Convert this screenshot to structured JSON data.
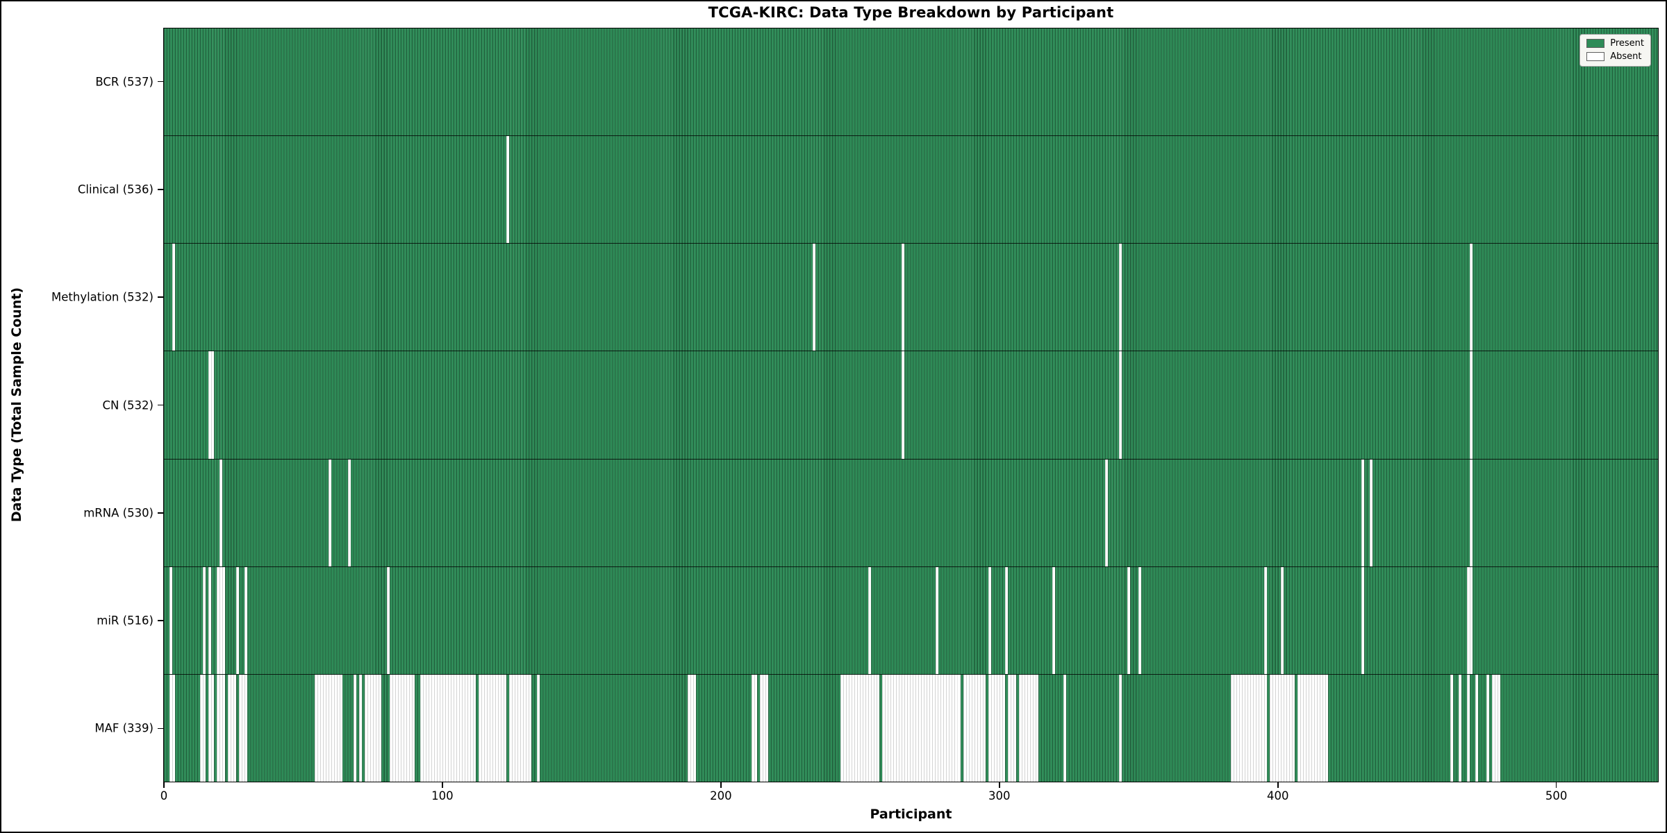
{
  "title": "TCGA-KIRC: Data Type Breakdown by Participant",
  "x_axis": {
    "label": "Participant",
    "ticks": [
      0,
      100,
      200,
      300,
      400,
      500
    ]
  },
  "y_axis": {
    "label": "Data Type (Total Sample Count)"
  },
  "legend": {
    "items": [
      {
        "label": "Present",
        "color": "#2e8b57"
      },
      {
        "label": "Absent",
        "color": "#ffffff"
      }
    ]
  },
  "colors": {
    "present": "#2e8b57",
    "absent": "#ffffff",
    "bar_edge": "#1c5737",
    "row_divider": "#1a1a1a",
    "legend_bg": "#f6f6f2"
  },
  "chart_data": {
    "type": "heatmap",
    "title": "TCGA-KIRC: Data Type Breakdown by Participant",
    "xlabel": "Participant",
    "ylabel": "Data Type (Total Sample Count)",
    "n_participants": 537,
    "x_range": [
      0,
      537
    ],
    "grid": false,
    "legend_position": "upper right",
    "encoding": "each row is a data type; green cell = sample present for that participant, white cell = absent; absent_ranges are inclusive participant-index ranges",
    "rows": [
      {
        "label": "BCR (537)",
        "name": "BCR",
        "present_count": 537,
        "absent_ranges": []
      },
      {
        "label": "Clinical (536)",
        "name": "Clinical",
        "present_count": 536,
        "absent_ranges": [
          [
            123,
            123
          ]
        ]
      },
      {
        "label": "Methylation (532)",
        "name": "Methylation",
        "present_count": 532,
        "absent_ranges": [
          [
            3,
            3
          ],
          [
            233,
            233
          ],
          [
            265,
            265
          ],
          [
            343,
            343
          ],
          [
            469,
            469
          ]
        ]
      },
      {
        "label": "CN (532)",
        "name": "CN",
        "present_count": 532,
        "absent_ranges": [
          [
            16,
            17
          ],
          [
            265,
            265
          ],
          [
            343,
            343
          ],
          [
            469,
            469
          ]
        ]
      },
      {
        "label": "mRNA (530)",
        "name": "mRNA",
        "present_count": 530,
        "absent_ranges": [
          [
            20,
            20
          ],
          [
            59,
            59
          ],
          [
            66,
            66
          ],
          [
            338,
            338
          ],
          [
            430,
            430
          ],
          [
            433,
            433
          ],
          [
            469,
            469
          ]
        ]
      },
      {
        "label": "miR (516)",
        "name": "miR",
        "present_count": 516,
        "absent_ranges": [
          [
            2,
            2
          ],
          [
            14,
            14
          ],
          [
            16,
            16
          ],
          [
            19,
            21
          ],
          [
            26,
            26
          ],
          [
            29,
            29
          ],
          [
            80,
            80
          ],
          [
            253,
            253
          ],
          [
            277,
            277
          ],
          [
            296,
            296
          ],
          [
            302,
            302
          ],
          [
            319,
            319
          ],
          [
            346,
            346
          ],
          [
            350,
            350
          ],
          [
            395,
            395
          ],
          [
            401,
            401
          ],
          [
            430,
            430
          ],
          [
            468,
            469
          ]
        ]
      },
      {
        "label": "MAF (339)",
        "name": "MAF",
        "present_count": 339,
        "absent_ranges": [
          [
            2,
            3
          ],
          [
            13,
            14
          ],
          [
            16,
            17
          ],
          [
            19,
            21
          ],
          [
            23,
            25
          ],
          [
            27,
            29
          ],
          [
            54,
            63
          ],
          [
            68,
            68
          ],
          [
            70,
            70
          ],
          [
            72,
            77
          ],
          [
            81,
            89
          ],
          [
            92,
            111
          ],
          [
            113,
            122
          ],
          [
            124,
            131
          ],
          [
            134,
            134
          ],
          [
            188,
            190
          ],
          [
            211,
            212
          ],
          [
            214,
            216
          ],
          [
            243,
            256
          ],
          [
            258,
            285
          ],
          [
            287,
            294
          ],
          [
            296,
            301
          ],
          [
            303,
            305
          ],
          [
            307,
            313
          ],
          [
            323,
            323
          ],
          [
            343,
            343
          ],
          [
            383,
            395
          ],
          [
            397,
            405
          ],
          [
            407,
            417
          ],
          [
            462,
            462
          ],
          [
            465,
            465
          ],
          [
            468,
            468
          ],
          [
            471,
            471
          ],
          [
            475,
            475
          ],
          [
            477,
            479
          ]
        ]
      }
    ]
  }
}
